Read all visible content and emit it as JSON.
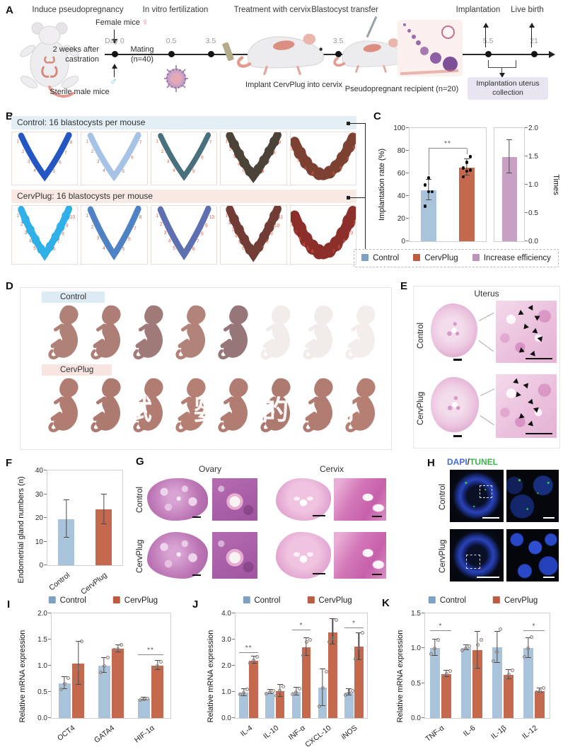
{
  "colors": {
    "control": "#a9c3da",
    "cervplug": "#c4694e",
    "increase": "#c7a0c4",
    "site_number_red": "#d9604f",
    "timeline_gray": "#9a9a9a"
  },
  "legend": {
    "control": "Control",
    "cervplug": "CervPlug",
    "increase": "Increase efficiency"
  },
  "panelA": {
    "label": "A",
    "titles": [
      "Induce pseudopregnancy",
      "In vitro fertilization",
      "Treatment with cervix",
      "Blastocyst transfer",
      "Implantation",
      "Live birth"
    ],
    "female_mice": "Female mice",
    "female_symbol": "♀",
    "male_symbol": "♂",
    "day0": "Day 0",
    "castration_1": "2 weeks after",
    "castration_2": "castration",
    "sterile": "Sterile male mice",
    "mating_1": "Mating",
    "mating_2": "(n=40)",
    "timepoints": [
      "0.5",
      "3.5",
      "3.5",
      "5.5",
      "21"
    ],
    "implant_caption": "Implant CervPlug into cervix",
    "recipient_caption": "Pseudopregnant recipient (n=20)",
    "collection_box": "Implantation uterus collection"
  },
  "panelB": {
    "label": "B",
    "rows": [
      {
        "header": "Control: 16 blastocysts per mouse",
        "bg": "#e3eef5",
        "uteri": [
          {
            "color": "#2456c4",
            "count": 8,
            "variant": "v",
            "width": 9,
            "lumpy": false
          },
          {
            "color": "#a6c3e6",
            "count": 7,
            "variant": "v",
            "width": 9,
            "lumpy": false
          },
          {
            "color": "#48707d",
            "count": 7,
            "variant": "v",
            "width": 8,
            "lumpy": false
          },
          {
            "color": "#4b4238",
            "count": 9,
            "variant": "v",
            "width": 12,
            "lumpy": true
          },
          {
            "color": "#7d4131",
            "count": 8,
            "variant": "u",
            "width": 15,
            "lumpy": true
          }
        ]
      },
      {
        "header": "CervPlug: 16 blastocysts per mouse",
        "bg": "#f9e9e5",
        "uteri": [
          {
            "color": "#2fb0e8",
            "count": 10,
            "variant": "v",
            "width": 10,
            "lumpy": true
          },
          {
            "color": "#4f82c4",
            "count": 8,
            "variant": "v",
            "width": 9,
            "lumpy": false
          },
          {
            "color": "#5e6fb2",
            "count": 10,
            "variant": "v",
            "width": 9,
            "lumpy": false
          },
          {
            "color": "#713c34",
            "count": 11,
            "variant": "v",
            "width": 12,
            "lumpy": true
          },
          {
            "color": "#8c2f2b",
            "count": 11,
            "variant": "u",
            "width": 16,
            "lumpy": true
          }
        ]
      }
    ]
  },
  "panelC": {
    "label": "C"
  },
  "panelD": {
    "label": "D",
    "watermark": "试 婴 的 月 根",
    "rows": [
      {
        "tag": "Control",
        "tag_bg": "#dcebf4",
        "pups": [
          "#b08277",
          "#ac7e76",
          "#9f7a78",
          "#b28379",
          "#97767a",
          "#f2edeb",
          "#f1ecea",
          "#f3eeec"
        ]
      },
      {
        "tag": "CervPlug",
        "tag_bg": "#f8e5e1",
        "pups": [
          "#b17d72",
          "#ad7a6f",
          "#b17d72",
          "#b57f74",
          "#b17d72",
          "#ad7a6f",
          "#b17d72",
          "#b57f74"
        ]
      }
    ]
  },
  "panelE": {
    "label": "E",
    "title": "Uterus",
    "rows": [
      "Control",
      "CervPlug"
    ]
  },
  "panelF": {
    "label": "F"
  },
  "panelG": {
    "label": "G",
    "titles": [
      "Ovary",
      "Cervix"
    ],
    "rows": [
      "Control",
      "CervPlug"
    ]
  },
  "panelH": {
    "label": "H",
    "title_dapi": "DAPI",
    "title_slash": "/",
    "title_tunel": "TUNEL",
    "dapi_color": "#3f6ce0",
    "tunel_color": "#3cb549",
    "rows": [
      "Control",
      "CervPlug"
    ]
  },
  "panelI": {
    "label": "I"
  },
  "panelJ": {
    "label": "J"
  },
  "panelK": {
    "label": "K"
  },
  "chart_data": {
    "c_left": {
      "type": "bar",
      "ylabel": "Implantation rate (%)",
      "ymin": 0,
      "ymax": 100,
      "yticks": [
        "0",
        "20",
        "40",
        "60",
        "80",
        "100"
      ],
      "categories": [
        "Control",
        "CervPlug"
      ],
      "show_xlabels": false,
      "bar_frac": 0.4,
      "dot_style": "solid",
      "series": [
        {
          "name": "implantation-rate",
          "colors": [
            "#a9c3da",
            "#c4694e"
          ],
          "values": [
            45,
            65
          ],
          "errors": [
            9,
            7
          ],
          "dots": [
            [
              31,
              44,
              44,
              50,
              56
            ],
            [
              57,
              62,
              63,
              65,
              70,
              75
            ]
          ]
        }
      ],
      "sig": [
        {
          "cats": [
            0,
            1
          ],
          "y": 82,
          "drops": [
            58,
            77
          ],
          "label": "**"
        }
      ]
    },
    "c_right": {
      "type": "bar",
      "ylabel": "Times",
      "yside": "right",
      "ymin": 0,
      "ymax": 2,
      "yticks": [
        "0.0",
        "0.5",
        "1.0",
        "1.5",
        "2.0"
      ],
      "categories": [
        "Increase efficiency"
      ],
      "show_xlabels": false,
      "bar_frac": 0.5,
      "series": [
        {
          "name": "increase-efficiency",
          "colors": [
            "#c7a0c4"
          ],
          "values": [
            1.49
          ],
          "errors": [
            0.29
          ]
        }
      ]
    },
    "f": {
      "type": "bar",
      "ylabel": "Endometrial gland numbers (n)",
      "ymin": 0,
      "ymax": 40,
      "yticks": [
        "0",
        "10",
        "20",
        "30",
        "40"
      ],
      "categories": [
        "Control",
        "CervPlug"
      ],
      "rotate_x": true,
      "bar_frac": 0.42,
      "series": [
        {
          "name": "gland-numbers",
          "colors": [
            "#a9c3da",
            "#c4694e"
          ],
          "values": [
            19.5,
            23.5
          ],
          "errors": [
            7.8,
            6.2
          ]
        }
      ]
    },
    "i": {
      "type": "bar",
      "ylabel": "Relative mRNA expression",
      "ymin": 0,
      "ymax": 2,
      "yticks": [
        "0.0",
        "0.5",
        "1.0",
        "1.5",
        "2.0"
      ],
      "categories": [
        "OCT4",
        "GATA4",
        "HIF-1α"
      ],
      "rotate_x": true,
      "bar_frac": 0.3,
      "bar_gap": 0.05,
      "series": [
        {
          "name": "Control",
          "color": "#a9c3da",
          "values": [
            0.66,
            1.0,
            0.36
          ],
          "errors": [
            0.11,
            0.14,
            0.02
          ],
          "dots": [
            [
              0.55,
              0.66,
              0.76
            ],
            [
              0.87,
              1.0,
              1.15
            ],
            [
              0.35,
              0.36,
              0.37
            ]
          ]
        },
        {
          "name": "CervPlug",
          "color": "#c4694e",
          "values": [
            1.04,
            1.32,
            1.0
          ],
          "errors": [
            0.4,
            0.06,
            0.08
          ],
          "dots": [
            [
              0.7,
              0.95,
              1.47
            ],
            [
              1.3,
              1.32,
              1.4
            ],
            [
              0.95,
              1.0,
              1.08
            ]
          ]
        }
      ],
      "sig": [
        {
          "cat": 2,
          "y": 1.2,
          "label": "**"
        }
      ]
    },
    "j": {
      "type": "bar",
      "ylabel": "Relative mRNA expression",
      "ymin": 0,
      "ymax": 4,
      "yticks": [
        "0.0",
        "1.0",
        "2.0",
        "3.0",
        "4.0"
      ],
      "categories": [
        "IL-4",
        "IL-10",
        "INF-α",
        "CXCL-10",
        "iNOS"
      ],
      "rotate_x": true,
      "bar_frac": 0.34,
      "bar_gap": 0.04,
      "series": [
        {
          "name": "Control",
          "color": "#a9c3da",
          "values": [
            0.97,
            0.98,
            1.0,
            1.15,
            0.97
          ],
          "errors": [
            0.12,
            0.07,
            0.13,
            0.68,
            0.1
          ],
          "dots": [
            [
              0.9,
              0.97,
              1.1
            ],
            [
              0.93,
              0.98,
              1.05
            ],
            [
              0.9,
              1.0,
              1.13
            ],
            [
              0.45,
              1.15,
              1.78
            ],
            [
              0.88,
              0.97,
              1.05
            ]
          ]
        },
        {
          "name": "CervPlug",
          "color": "#c4694e",
          "values": [
            2.2,
            1.03,
            2.7,
            3.28,
            2.72
          ],
          "errors": [
            0.12,
            0.22,
            0.33,
            0.47,
            0.5
          ],
          "dots": [
            [
              2.1,
              2.2,
              2.33
            ],
            [
              0.85,
              1.05,
              1.2
            ],
            [
              2.4,
              2.9,
              3.0
            ],
            [
              2.9,
              3.05,
              3.75
            ],
            [
              2.25,
              2.7,
              3.25
            ]
          ]
        }
      ],
      "sig": [
        {
          "cat": 0,
          "y": 2.48,
          "label": "**"
        },
        {
          "cat": 2,
          "y": 3.35,
          "label": "*"
        },
        {
          "cat": 4,
          "y": 3.42,
          "label": "*"
        }
      ]
    },
    "k": {
      "type": "bar",
      "ylabel": "Relative mRNA expression",
      "ymin": 0,
      "ymax": 1.5,
      "yticks": [
        "0.0",
        "0.5",
        "1.0",
        "1.5"
      ],
      "categories": [
        "TNF-α",
        "IL-6",
        "IL-1β",
        "IL-12"
      ],
      "rotate_x": true,
      "bar_frac": 0.32,
      "bar_gap": 0.05,
      "series": [
        {
          "name": "Control",
          "color": "#a9c3da",
          "values": [
            1.0,
            1.0,
            1.01,
            1.0
          ],
          "errors": [
            0.11,
            0.03,
            0.22,
            0.14
          ],
          "dots": [
            [
              0.92,
              1.0,
              1.12
            ],
            [
              0.97,
              1.0,
              1.03
            ],
            [
              0.82,
              0.95,
              1.27
            ],
            [
              0.88,
              1.0,
              1.16
            ]
          ]
        },
        {
          "name": "CervPlug",
          "color": "#c4694e",
          "values": [
            0.63,
            0.97,
            0.62,
            0.39
          ],
          "errors": [
            0.04,
            0.26,
            0.06,
            0.03
          ],
          "dots": [
            [
              0.6,
              0.63,
              0.67
            ],
            [
              0.73,
              1.05,
              1.12
            ],
            [
              0.57,
              0.62,
              0.68
            ],
            [
              0.37,
              0.39,
              0.43
            ]
          ]
        }
      ],
      "sig": [
        {
          "cat": 0,
          "y": 1.25,
          "label": "*"
        },
        {
          "cat": 3,
          "y": 1.25,
          "label": "*"
        }
      ]
    }
  }
}
